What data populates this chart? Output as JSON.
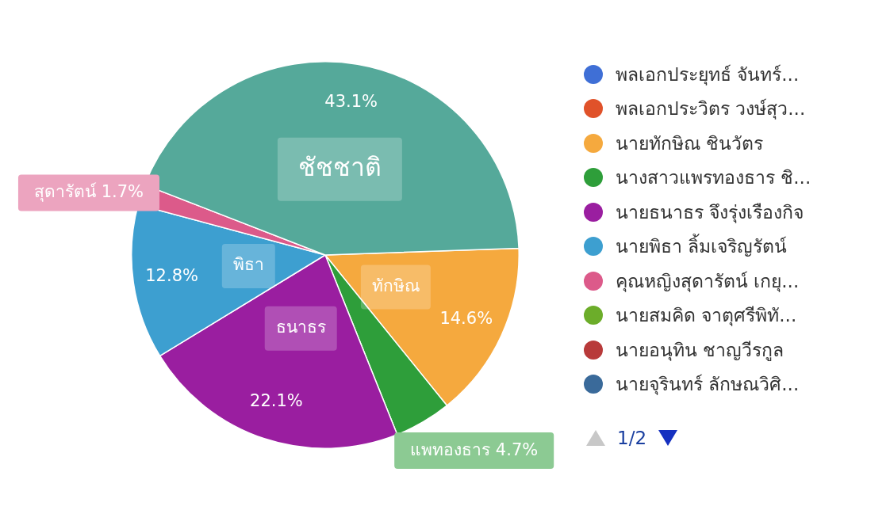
{
  "chart_data": {
    "type": "pie",
    "categories": [
      "พลเอกประยุทธ์ จันทร์...",
      "พลเอกประวิตร วงษ์สุว...",
      "นายทักษิณ ชินวัตร",
      "นางสาวแพรทองธาร ชิ...",
      "นายธนาธร จึงรุ่งเรืองกิจ",
      "นายพิธา ลิ้มเจริญรัตน์",
      "คุณหญิงสุดารัตน์ เกยุ...",
      "นายสมคิด จาตุศรีพิทั...",
      "นายอนุทิน ชาญวีรกูล",
      "นายจุรินทร์ ลักษณวิศิ...",
      "ชัชชาติ"
    ],
    "values": [
      null,
      null,
      14.6,
      4.7,
      22.1,
      12.8,
      1.7,
      null,
      null,
      null,
      43.1
    ],
    "colors": [
      "#3f6fd6",
      "#e0522a",
      "#f5a93e",
      "#2e9e3a",
      "#9a1ea0",
      "#3d9fd0",
      "#dc5a8a",
      "#6cad2a",
      "#b83a3a",
      "#3a6a9a",
      "#55a99a"
    ],
    "value_labels": [
      null,
      null,
      "14.6%",
      "แพทองธาร 4.7%",
      "22.1%",
      "12.8%",
      "สุดารัตน์ 1.7%",
      null,
      null,
      null,
      "43.1%"
    ],
    "annotations": [
      {
        "text": "ทักษิณ",
        "x": "นายทักษิณ ชินวัตร"
      },
      {
        "text": "ธนาธร",
        "x": "นายธนาธร จึงรุ่งเรืองกิจ"
      },
      {
        "text": "พิธา",
        "x": "นายพิธา ลิ้มเจริญรัตน์"
      },
      "1/2"
    ],
    "legend": "right"
  }
}
